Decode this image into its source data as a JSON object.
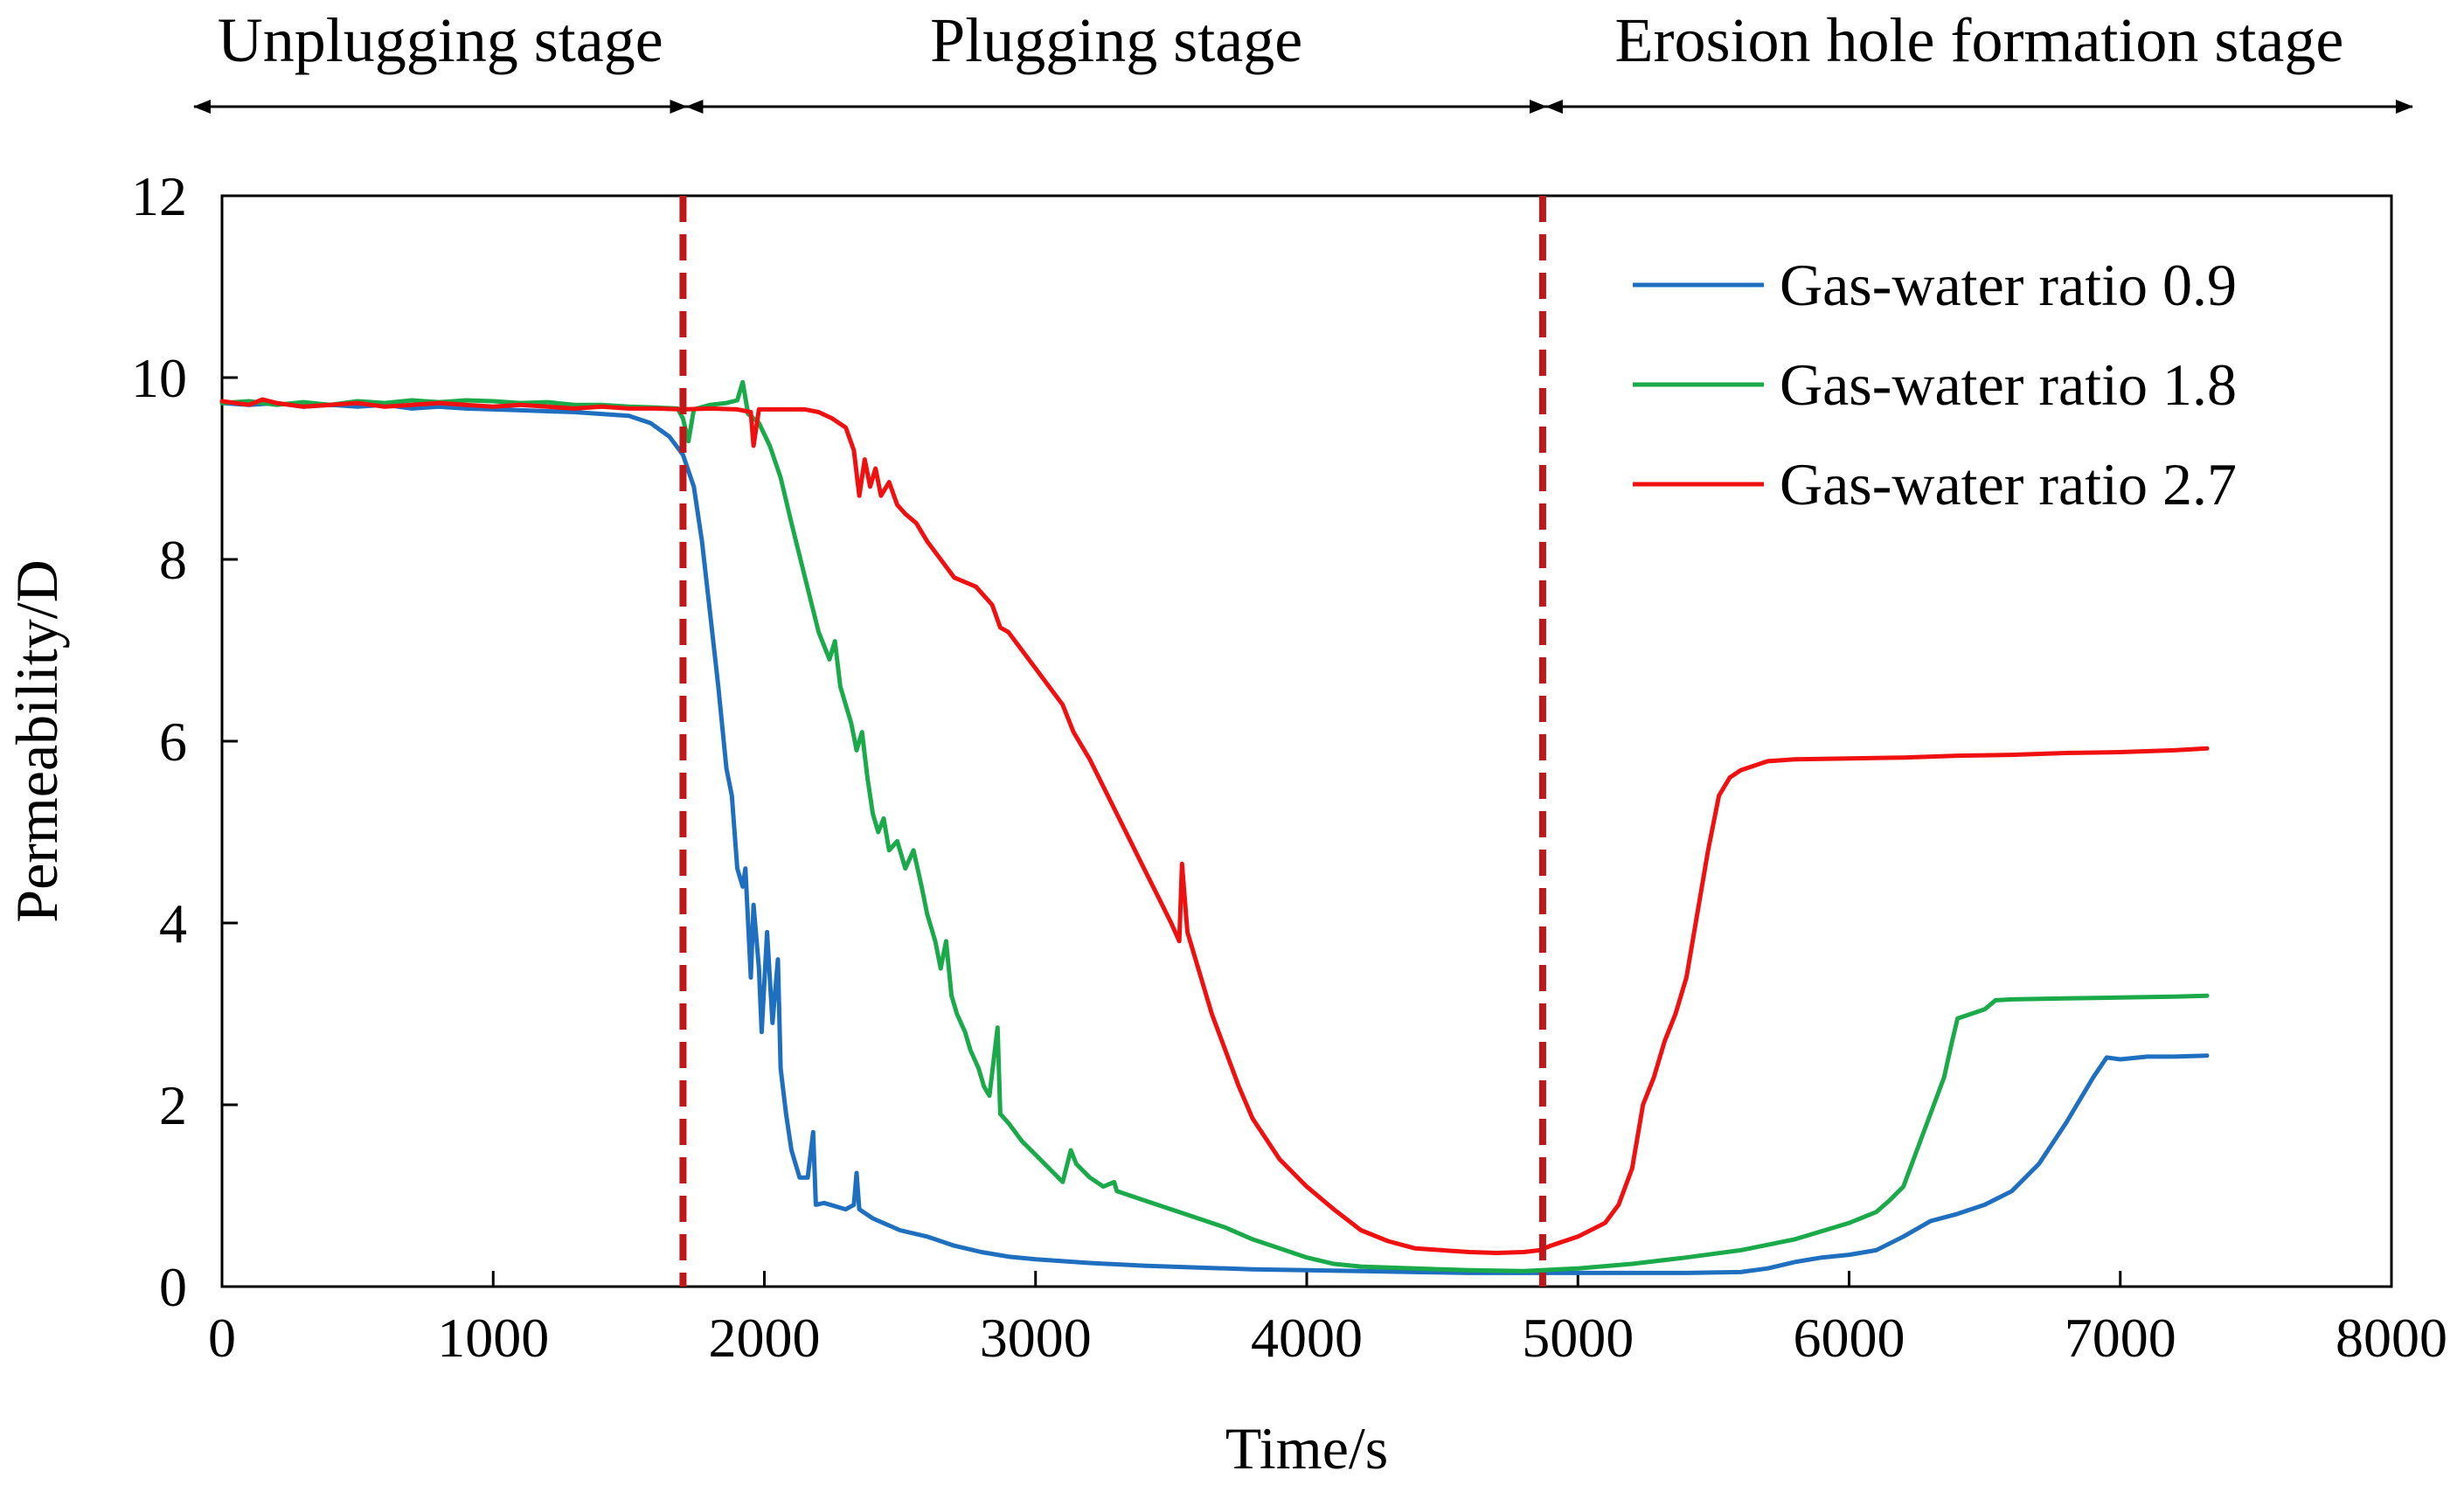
{
  "chart_data": {
    "type": "line",
    "title": "",
    "xlabel": "Time/s",
    "ylabel": "Permeability/D",
    "xlim": [
      0,
      8000
    ],
    "ylim": [
      0,
      12
    ],
    "x_ticks": [
      0,
      1000,
      2000,
      3000,
      4000,
      5000,
      6000,
      7000,
      8000
    ],
    "y_ticks": [
      0,
      2,
      4,
      6,
      8,
      10,
      12
    ],
    "grid": false,
    "legend_position": "top-right",
    "stages": [
      {
        "label": "Unplugging stage",
        "start": 0,
        "end": 1700
      },
      {
        "label": "Plugging stage",
        "start": 1700,
        "end": 4870
      },
      {
        "label": "Erosion hole formation stage",
        "start": 4870,
        "end": 8000
      }
    ],
    "stage_boundaries": [
      1700,
      4870
    ],
    "series": [
      {
        "name": "Gas-water ratio 0.9",
        "color": "#1f6fc0",
        "points": [
          [
            0,
            9.72
          ],
          [
            100,
            9.7
          ],
          [
            200,
            9.72
          ],
          [
            300,
            9.68
          ],
          [
            400,
            9.7
          ],
          [
            500,
            9.68
          ],
          [
            600,
            9.7
          ],
          [
            700,
            9.66
          ],
          [
            800,
            9.68
          ],
          [
            900,
            9.66
          ],
          [
            1000,
            9.65
          ],
          [
            1100,
            9.64
          ],
          [
            1200,
            9.63
          ],
          [
            1300,
            9.62
          ],
          [
            1400,
            9.6
          ],
          [
            1500,
            9.58
          ],
          [
            1580,
            9.5
          ],
          [
            1650,
            9.35
          ],
          [
            1700,
            9.15
          ],
          [
            1740,
            8.8
          ],
          [
            1770,
            8.2
          ],
          [
            1800,
            7.4
          ],
          [
            1830,
            6.6
          ],
          [
            1860,
            5.7
          ],
          [
            1880,
            5.4
          ],
          [
            1900,
            4.6
          ],
          [
            1920,
            4.4
          ],
          [
            1930,
            4.6
          ],
          [
            1950,
            3.4
          ],
          [
            1960,
            4.2
          ],
          [
            1980,
            3.5
          ],
          [
            1990,
            2.8
          ],
          [
            2010,
            3.9
          ],
          [
            2030,
            2.9
          ],
          [
            2050,
            3.6
          ],
          [
            2060,
            2.4
          ],
          [
            2080,
            1.9
          ],
          [
            2100,
            1.5
          ],
          [
            2130,
            1.2
          ],
          [
            2160,
            1.2
          ],
          [
            2180,
            1.7
          ],
          [
            2190,
            0.9
          ],
          [
            2220,
            0.92
          ],
          [
            2300,
            0.85
          ],
          [
            2330,
            0.9
          ],
          [
            2340,
            1.25
          ],
          [
            2350,
            0.85
          ],
          [
            2400,
            0.75
          ],
          [
            2500,
            0.62
          ],
          [
            2600,
            0.55
          ],
          [
            2700,
            0.45
          ],
          [
            2800,
            0.38
          ],
          [
            2900,
            0.33
          ],
          [
            3000,
            0.3
          ],
          [
            3200,
            0.26
          ],
          [
            3400,
            0.23
          ],
          [
            3600,
            0.21
          ],
          [
            3800,
            0.19
          ],
          [
            4000,
            0.18
          ],
          [
            4200,
            0.17
          ],
          [
            4400,
            0.16
          ],
          [
            4600,
            0.15
          ],
          [
            4800,
            0.15
          ],
          [
            5000,
            0.15
          ],
          [
            5200,
            0.15
          ],
          [
            5400,
            0.15
          ],
          [
            5600,
            0.16
          ],
          [
            5700,
            0.2
          ],
          [
            5800,
            0.27
          ],
          [
            5900,
            0.32
          ],
          [
            6000,
            0.35
          ],
          [
            6100,
            0.4
          ],
          [
            6200,
            0.55
          ],
          [
            6300,
            0.72
          ],
          [
            6400,
            0.8
          ],
          [
            6500,
            0.9
          ],
          [
            6600,
            1.05
          ],
          [
            6700,
            1.35
          ],
          [
            6800,
            1.8
          ],
          [
            6900,
            2.3
          ],
          [
            6950,
            2.52
          ],
          [
            7000,
            2.5
          ],
          [
            7100,
            2.53
          ],
          [
            7200,
            2.53
          ],
          [
            7320,
            2.54
          ]
        ]
      },
      {
        "name": "Gas-water ratio 1.8",
        "color": "#1aaa4a",
        "points": [
          [
            0,
            9.72
          ],
          [
            100,
            9.74
          ],
          [
            200,
            9.7
          ],
          [
            300,
            9.73
          ],
          [
            400,
            9.7
          ],
          [
            500,
            9.74
          ],
          [
            600,
            9.72
          ],
          [
            700,
            9.75
          ],
          [
            800,
            9.73
          ],
          [
            900,
            9.75
          ],
          [
            1000,
            9.74
          ],
          [
            1100,
            9.72
          ],
          [
            1200,
            9.73
          ],
          [
            1300,
            9.7
          ],
          [
            1400,
            9.7
          ],
          [
            1500,
            9.68
          ],
          [
            1600,
            9.67
          ],
          [
            1680,
            9.66
          ],
          [
            1700,
            9.55
          ],
          [
            1720,
            9.3
          ],
          [
            1740,
            9.65
          ],
          [
            1800,
            9.7
          ],
          [
            1860,
            9.72
          ],
          [
            1900,
            9.75
          ],
          [
            1920,
            9.95
          ],
          [
            1940,
            9.6
          ],
          [
            1980,
            9.5
          ],
          [
            2020,
            9.25
          ],
          [
            2060,
            8.9
          ],
          [
            2100,
            8.4
          ],
          [
            2150,
            7.8
          ],
          [
            2200,
            7.2
          ],
          [
            2240,
            6.9
          ],
          [
            2260,
            7.1
          ],
          [
            2280,
            6.6
          ],
          [
            2320,
            6.2
          ],
          [
            2340,
            5.9
          ],
          [
            2360,
            6.1
          ],
          [
            2380,
            5.6
          ],
          [
            2400,
            5.2
          ],
          [
            2420,
            5.0
          ],
          [
            2440,
            5.15
          ],
          [
            2460,
            4.8
          ],
          [
            2490,
            4.9
          ],
          [
            2520,
            4.6
          ],
          [
            2550,
            4.8
          ],
          [
            2580,
            4.4
          ],
          [
            2600,
            4.1
          ],
          [
            2630,
            3.8
          ],
          [
            2650,
            3.5
          ],
          [
            2670,
            3.8
          ],
          [
            2690,
            3.2
          ],
          [
            2710,
            3.0
          ],
          [
            2740,
            2.8
          ],
          [
            2760,
            2.6
          ],
          [
            2790,
            2.4
          ],
          [
            2810,
            2.2
          ],
          [
            2830,
            2.1
          ],
          [
            2850,
            2.6
          ],
          [
            2860,
            2.85
          ],
          [
            2870,
            1.9
          ],
          [
            2900,
            1.8
          ],
          [
            2950,
            1.6
          ],
          [
            3000,
            1.45
          ],
          [
            3050,
            1.3
          ],
          [
            3100,
            1.15
          ],
          [
            3130,
            1.5
          ],
          [
            3150,
            1.35
          ],
          [
            3200,
            1.2
          ],
          [
            3250,
            1.1
          ],
          [
            3290,
            1.15
          ],
          [
            3300,
            1.05
          ],
          [
            3400,
            0.95
          ],
          [
            3500,
            0.85
          ],
          [
            3600,
            0.75
          ],
          [
            3700,
            0.65
          ],
          [
            3800,
            0.52
          ],
          [
            3900,
            0.42
          ],
          [
            4000,
            0.32
          ],
          [
            4100,
            0.25
          ],
          [
            4200,
            0.22
          ],
          [
            4400,
            0.2
          ],
          [
            4600,
            0.18
          ],
          [
            4800,
            0.17
          ],
          [
            5000,
            0.2
          ],
          [
            5200,
            0.25
          ],
          [
            5400,
            0.32
          ],
          [
            5600,
            0.4
          ],
          [
            5800,
            0.52
          ],
          [
            6000,
            0.7
          ],
          [
            6100,
            0.82
          ],
          [
            6150,
            0.95
          ],
          [
            6200,
            1.1
          ],
          [
            6250,
            1.5
          ],
          [
            6300,
            1.9
          ],
          [
            6350,
            2.3
          ],
          [
            6380,
            2.7
          ],
          [
            6400,
            2.95
          ],
          [
            6450,
            3.0
          ],
          [
            6500,
            3.05
          ],
          [
            6540,
            3.15
          ],
          [
            6600,
            3.16
          ],
          [
            6800,
            3.17
          ],
          [
            7000,
            3.18
          ],
          [
            7200,
            3.19
          ],
          [
            7320,
            3.2
          ]
        ]
      },
      {
        "name": "Gas-water ratio 2.7",
        "color": "#f01010",
        "points": [
          [
            0,
            9.74
          ],
          [
            100,
            9.7
          ],
          [
            150,
            9.76
          ],
          [
            200,
            9.72
          ],
          [
            300,
            9.68
          ],
          [
            400,
            9.7
          ],
          [
            500,
            9.72
          ],
          [
            600,
            9.68
          ],
          [
            700,
            9.7
          ],
          [
            800,
            9.72
          ],
          [
            900,
            9.7
          ],
          [
            1000,
            9.68
          ],
          [
            1100,
            9.7
          ],
          [
            1200,
            9.68
          ],
          [
            1300,
            9.66
          ],
          [
            1400,
            9.68
          ],
          [
            1500,
            9.66
          ],
          [
            1600,
            9.66
          ],
          [
            1700,
            9.65
          ],
          [
            1800,
            9.66
          ],
          [
            1900,
            9.65
          ],
          [
            1950,
            9.62
          ],
          [
            1960,
            9.25
          ],
          [
            1980,
            9.65
          ],
          [
            2050,
            9.65
          ],
          [
            2150,
            9.65
          ],
          [
            2200,
            9.62
          ],
          [
            2250,
            9.55
          ],
          [
            2300,
            9.45
          ],
          [
            2330,
            9.2
          ],
          [
            2350,
            8.7
          ],
          [
            2370,
            9.1
          ],
          [
            2390,
            8.8
          ],
          [
            2410,
            9.0
          ],
          [
            2430,
            8.7
          ],
          [
            2460,
            8.85
          ],
          [
            2490,
            8.6
          ],
          [
            2520,
            8.5
          ],
          [
            2560,
            8.4
          ],
          [
            2600,
            8.2
          ],
          [
            2650,
            8.0
          ],
          [
            2700,
            7.8
          ],
          [
            2780,
            7.7
          ],
          [
            2840,
            7.5
          ],
          [
            2870,
            7.25
          ],
          [
            2900,
            7.2
          ],
          [
            3000,
            6.8
          ],
          [
            3050,
            6.6
          ],
          [
            3100,
            6.4
          ],
          [
            3140,
            6.1
          ],
          [
            3200,
            5.8
          ],
          [
            3250,
            5.5
          ],
          [
            3300,
            5.2
          ],
          [
            3350,
            4.9
          ],
          [
            3400,
            4.6
          ],
          [
            3450,
            4.3
          ],
          [
            3500,
            4.0
          ],
          [
            3530,
            3.8
          ],
          [
            3540,
            4.65
          ],
          [
            3560,
            3.9
          ],
          [
            3600,
            3.5
          ],
          [
            3650,
            3.0
          ],
          [
            3700,
            2.6
          ],
          [
            3750,
            2.2
          ],
          [
            3800,
            1.85
          ],
          [
            3900,
            1.4
          ],
          [
            4000,
            1.1
          ],
          [
            4100,
            0.85
          ],
          [
            4200,
            0.62
          ],
          [
            4300,
            0.5
          ],
          [
            4400,
            0.42
          ],
          [
            4500,
            0.4
          ],
          [
            4600,
            0.38
          ],
          [
            4700,
            0.37
          ],
          [
            4800,
            0.38
          ],
          [
            4860,
            0.4
          ],
          [
            4900,
            0.45
          ],
          [
            5000,
            0.55
          ],
          [
            5100,
            0.7
          ],
          [
            5150,
            0.9
          ],
          [
            5200,
            1.3
          ],
          [
            5240,
            2.0
          ],
          [
            5280,
            2.3
          ],
          [
            5320,
            2.7
          ],
          [
            5360,
            3.0
          ],
          [
            5400,
            3.4
          ],
          [
            5440,
            4.1
          ],
          [
            5480,
            4.8
          ],
          [
            5520,
            5.4
          ],
          [
            5560,
            5.6
          ],
          [
            5600,
            5.68
          ],
          [
            5700,
            5.78
          ],
          [
            5800,
            5.8
          ],
          [
            6000,
            5.81
          ],
          [
            6200,
            5.82
          ],
          [
            6400,
            5.84
          ],
          [
            6600,
            5.85
          ],
          [
            6800,
            5.87
          ],
          [
            7000,
            5.88
          ],
          [
            7200,
            5.9
          ],
          [
            7320,
            5.92
          ]
        ]
      }
    ]
  }
}
